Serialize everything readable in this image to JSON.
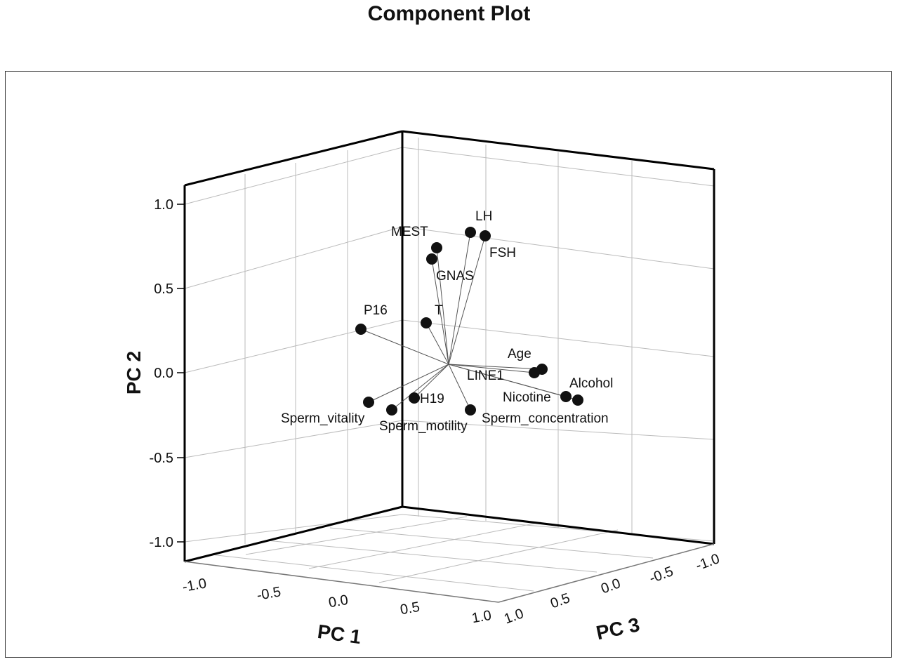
{
  "chart_data": {
    "type": "scatter",
    "title": "Component Plot",
    "axes": [
      {
        "name": "PC 1",
        "label": "PC 1",
        "range": [
          -1.0,
          1.0
        ],
        "ticks": [
          "-1.0",
          "-0.5",
          "0.0",
          "0.5",
          "1.0"
        ]
      },
      {
        "name": "PC 2",
        "label": "PC 2",
        "range": [
          -1.0,
          1.0
        ],
        "ticks": [
          "-1.0",
          "-0.5",
          "0.0",
          "0.5",
          "1.0"
        ]
      },
      {
        "name": "PC 3",
        "label": "PC 3",
        "range": [
          -1.0,
          1.0
        ],
        "ticks": [
          "1.0",
          "0.5",
          "0.0",
          "-0.5",
          "-1.0"
        ]
      }
    ],
    "grid": true,
    "point_color": "#111111",
    "points": [
      {
        "label": "LH",
        "pc2": 0.82
      },
      {
        "label": "FSH",
        "pc2": 0.8
      },
      {
        "label": "MEST",
        "pc2": 0.73
      },
      {
        "label": "GNAS",
        "pc2": 0.67
      },
      {
        "label": "P16",
        "pc2": 0.25
      },
      {
        "label": "T",
        "pc2": 0.29
      },
      {
        "label": "Age",
        "pc2": 0.02
      },
      {
        "label": "LINE1",
        "pc2": 0.0
      },
      {
        "label": "Alcohol",
        "pc2": -0.16
      },
      {
        "label": "Nicotine",
        "pc2": -0.14
      },
      {
        "label": "H19",
        "pc2": -0.15
      },
      {
        "label": "Sperm_vitality",
        "pc2": -0.18
      },
      {
        "label": "Sperm_motility",
        "pc2": -0.22
      },
      {
        "label": "Sperm_concentration",
        "pc2": -0.22
      }
    ]
  }
}
